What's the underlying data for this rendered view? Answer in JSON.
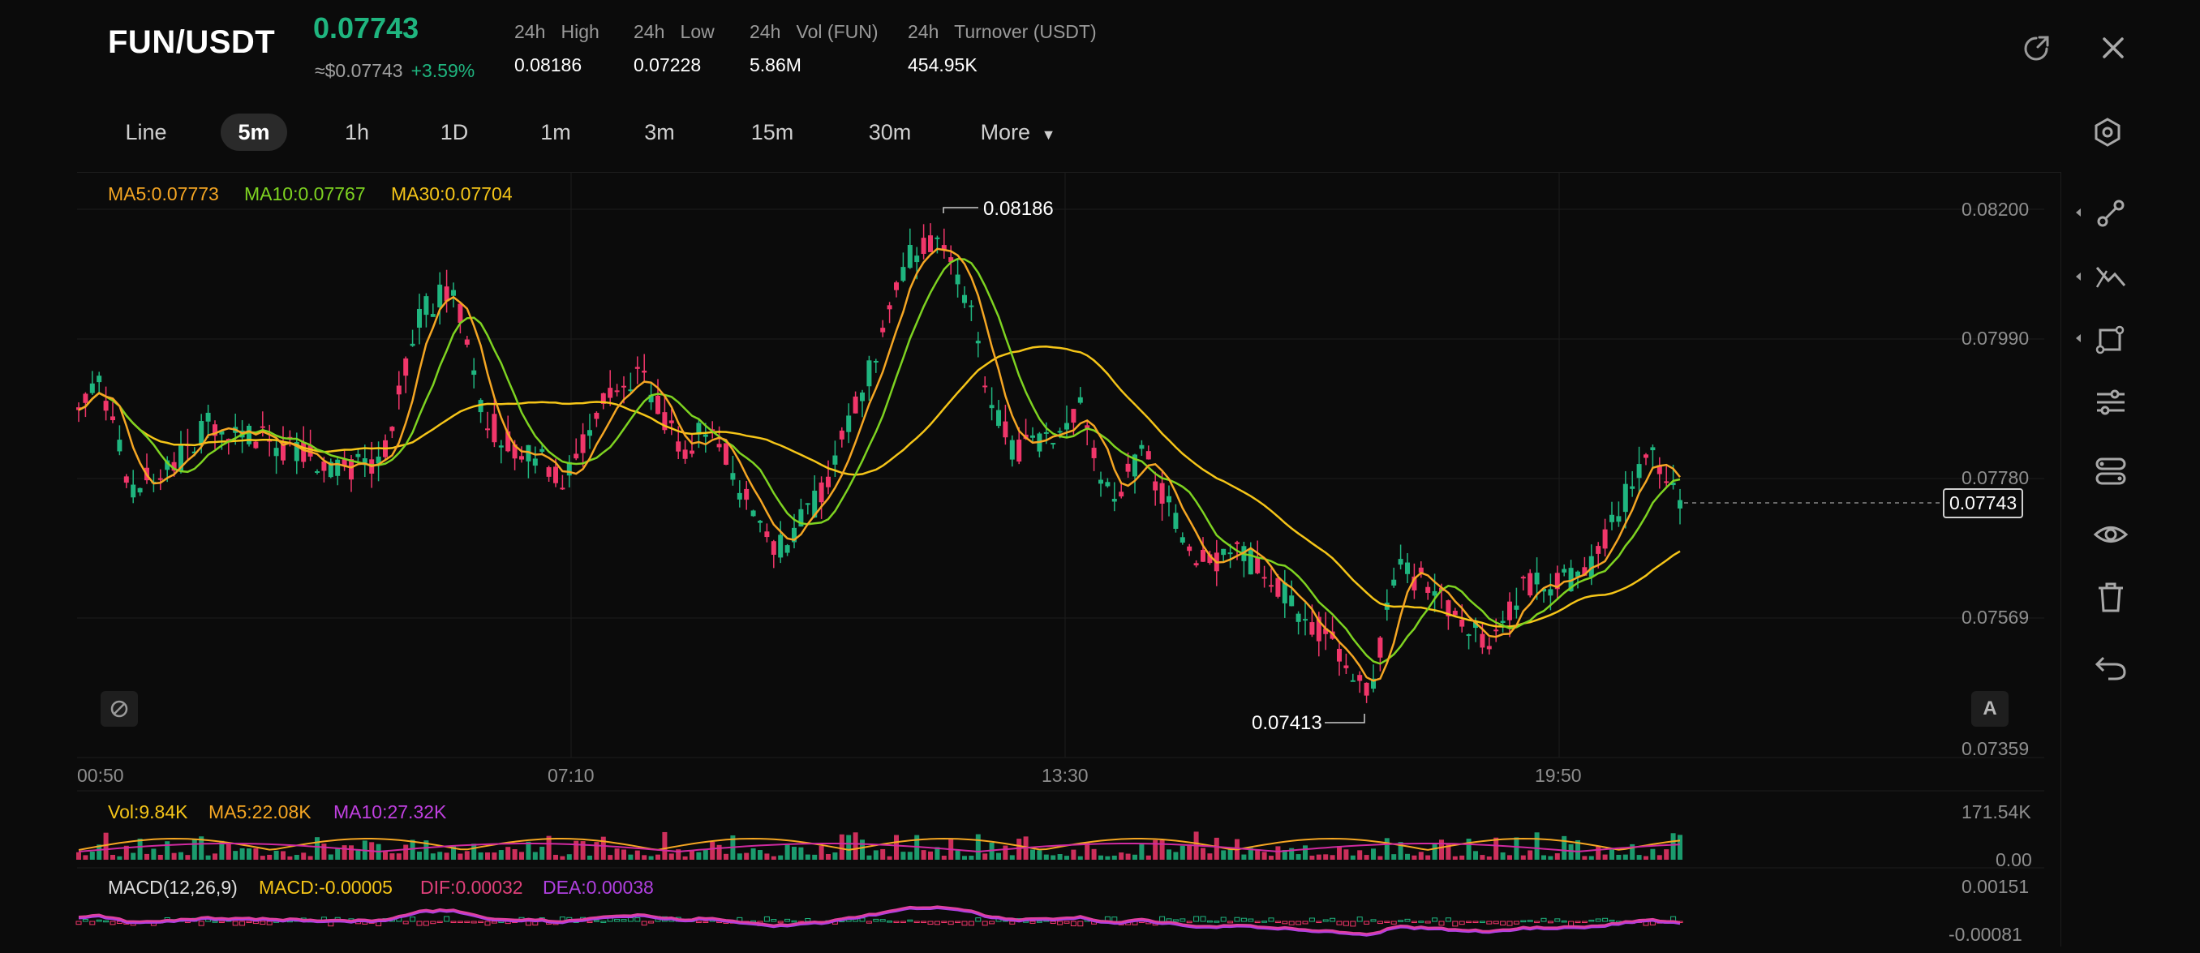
{
  "header": {
    "pair": "FUN/USDT",
    "price": "0.07743",
    "usd_price": "≈$0.07743",
    "change": "+3.59%",
    "stats": [
      {
        "label": "24h   High",
        "value": "0.08186"
      },
      {
        "label": "24h   Low",
        "value": "0.07228"
      },
      {
        "label": "24h   Vol (FUN)",
        "value": "5.86M"
      },
      {
        "label": "24h   Turnover (USDT)",
        "value": "454.95K"
      }
    ]
  },
  "timeframes": {
    "items": [
      "Line",
      "5m",
      "1h",
      "1D",
      "1m",
      "3m",
      "15m",
      "30m",
      "More"
    ],
    "active": "5m"
  },
  "main_indicators": {
    "ma5": "MA5:0.07773",
    "ma10": "MA10:0.07767",
    "ma30": "MA30:0.07704"
  },
  "price_axis": [
    "0.08200",
    "0.07990",
    "0.07780",
    "0.07569",
    "0.07359"
  ],
  "current_price_label": "0.07743",
  "high_marker": "0.08186",
  "low_marker": "0.07413",
  "time_axis": [
    "00:50",
    "07:10",
    "13:30",
    "19:50"
  ],
  "volume": {
    "vol": "Vol:9.84K",
    "ma5": "MA5:22.08K",
    "ma10": "MA10:27.32K",
    "axis": [
      "171.54K",
      "0.00"
    ]
  },
  "macd": {
    "title": "MACD(12,26,9)",
    "macd": "MACD:-0.00005",
    "dif": "DIF:0.00032",
    "dea": "DEA:0.00038",
    "axis": [
      "0.00151",
      "-0.00081"
    ]
  },
  "auto_scale_label": "A",
  "colors": {
    "up": "#1fb57f",
    "down": "#f0366a",
    "ma5": "#f5a623",
    "ma10": "#7ed321",
    "ma30": "#f5c518",
    "dif": "#e040a0",
    "dea": "#b040e0"
  },
  "icons": {
    "refresh": "share-arrow-icon",
    "close": "close-icon",
    "settings": "hexagon-gear-icon",
    "tools": [
      "line-tool-icon",
      "polyline-tool-icon",
      "shape-tool-icon",
      "indicator-settings-icon",
      "template-icon",
      "visibility-icon",
      "trash-icon",
      "undo-icon"
    ]
  }
}
